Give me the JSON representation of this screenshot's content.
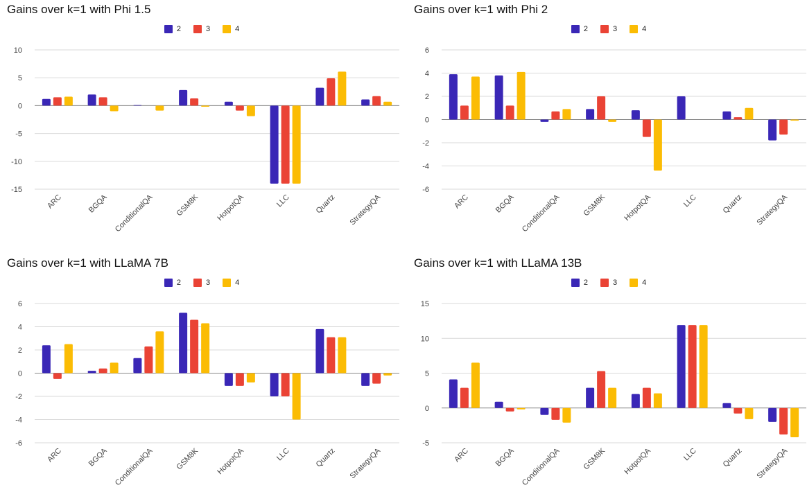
{
  "colors": {
    "2": "#3a27b6",
    "3": "#ea4335",
    "4": "#fbbc04"
  },
  "chart_data": [
    {
      "type": "bar",
      "title": "Gains over k=1 with Phi 1.5",
      "categories": [
        "ARC",
        "BGQA",
        "ConditionalQA",
        "GSM8K",
        "HotpotQA",
        "LLC",
        "Quartz",
        "StrategyQA"
      ],
      "series": [
        {
          "name": "2",
          "values": [
            1.2,
            2.0,
            0.1,
            2.8,
            0.7,
            -14.0,
            3.2,
            1.1
          ]
        },
        {
          "name": "3",
          "values": [
            1.5,
            1.5,
            0.0,
            1.3,
            -0.9,
            -14.0,
            4.9,
            1.7
          ]
        },
        {
          "name": "4",
          "values": [
            1.6,
            -1.0,
            -0.9,
            -0.2,
            -1.9,
            -14.0,
            6.1,
            0.7
          ]
        }
      ],
      "ylim": [
        -15,
        10
      ],
      "yticks": [
        10,
        5,
        0,
        -5,
        -10,
        -15
      ],
      "legend": "top-center",
      "grid": true
    },
    {
      "type": "bar",
      "title": "Gains over k=1 with Phi 2",
      "categories": [
        "ARC",
        "BGQA",
        "ConditionalQA",
        "GSM8K",
        "HotpotQA",
        "LLC",
        "Quartz",
        "StrategyQA"
      ],
      "series": [
        {
          "name": "2",
          "values": [
            3.9,
            3.8,
            -0.2,
            0.9,
            0.8,
            2.0,
            0.7,
            -1.8
          ]
        },
        {
          "name": "3",
          "values": [
            1.2,
            1.2,
            0.7,
            2.0,
            -1.5,
            0.0,
            0.2,
            -1.3
          ]
        },
        {
          "name": "4",
          "values": [
            3.7,
            4.1,
            0.9,
            -0.2,
            -4.4,
            0.0,
            1.0,
            -0.1
          ]
        }
      ],
      "ylim": [
        -6,
        6
      ],
      "yticks": [
        6,
        4,
        2,
        0,
        -2,
        -4,
        -6
      ],
      "legend": "top-center",
      "grid": true
    },
    {
      "type": "bar",
      "title": "Gains over k=1 with LLaMA 7B",
      "categories": [
        "ARC",
        "BGQA",
        "ConditionalQA",
        "GSM8K",
        "HotpotQA",
        "LLC",
        "Quartz",
        "StrategyQA"
      ],
      "series": [
        {
          "name": "2",
          "values": [
            2.4,
            0.2,
            1.3,
            5.2,
            -1.1,
            -2.0,
            3.8,
            -1.1
          ]
        },
        {
          "name": "3",
          "values": [
            -0.5,
            0.4,
            2.3,
            4.6,
            -1.1,
            -2.0,
            3.1,
            -0.9
          ]
        },
        {
          "name": "4",
          "values": [
            2.5,
            0.9,
            3.6,
            4.3,
            -0.8,
            -4.0,
            3.1,
            -0.2
          ]
        }
      ],
      "ylim": [
        -6,
        6
      ],
      "yticks": [
        6,
        4,
        2,
        0,
        -2,
        -4,
        -6
      ],
      "legend": "top-center",
      "grid": true
    },
    {
      "type": "bar",
      "title": "Gains over k=1 with LLaMA 13B",
      "categories": [
        "ARC",
        "BGQA",
        "ConditionalQA",
        "GSM8K",
        "HotpotQA",
        "LLC",
        "Quartz",
        "StrategyQA"
      ],
      "series": [
        {
          "name": "2",
          "values": [
            4.1,
            0.9,
            -1.0,
            2.9,
            2.0,
            11.9,
            0.7,
            -2.0
          ]
        },
        {
          "name": "3",
          "values": [
            2.9,
            -0.5,
            -1.7,
            5.3,
            2.9,
            11.9,
            -0.8,
            -3.8
          ]
        },
        {
          "name": "4",
          "values": [
            6.5,
            -0.2,
            -2.1,
            2.9,
            2.1,
            11.9,
            -1.6,
            -4.2
          ]
        }
      ],
      "ylim": [
        -5,
        15
      ],
      "yticks": [
        15,
        10,
        5,
        0,
        -5
      ],
      "legend": "top-center",
      "grid": true
    }
  ]
}
